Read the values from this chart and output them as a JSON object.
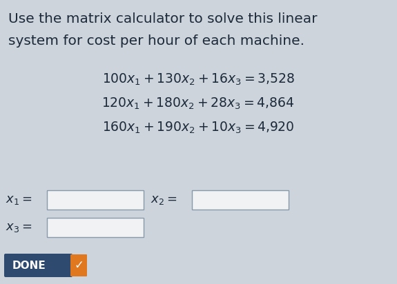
{
  "title_line1": "Use the matrix calculator to solve this linear",
  "title_line2": "system for cost per hour of each machine.",
  "equations": [
    [
      "100",
      "130",
      "16",
      "3{,}528"
    ],
    [
      "120",
      "180",
      "28",
      "4{,}864"
    ],
    [
      "160",
      "190",
      "10",
      "4{,}920"
    ]
  ],
  "bg_color": "#cdd4dc",
  "text_color": "#1c2a3a",
  "done_bg": "#2e4a6e",
  "done_text": "DONE",
  "done_check_color": "#e07820",
  "box_color": "#f0f2f4",
  "box_edge": "#8899aa",
  "title_fontsize": 14.5,
  "eq_fontsize": 13.5,
  "label_fontsize": 13,
  "done_fontsize": 11
}
